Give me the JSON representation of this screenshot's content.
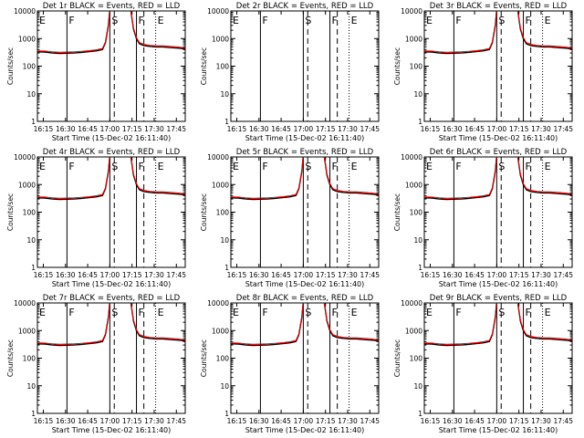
{
  "figure": {
    "colors": {
      "events": "#000000",
      "lld": "#ff0000",
      "frame": "#000000"
    },
    "x_tick_labels": [
      "16:15",
      "16:30",
      "16:45",
      "17:00",
      "17:15",
      "17:30",
      "17:45"
    ],
    "y_tick_labels": [
      "1",
      "10",
      "100",
      "1000",
      "10000"
    ],
    "ylabel": "Counts/sec",
    "xlabel": "Start Time (15-Dec-02 16:11:40)"
  },
  "chart_data": [
    {
      "type": "line",
      "title": "Det 1r  BLACK = Events, RED = LLD",
      "markers": {
        "E": "E",
        "F": "F",
        "S": "S",
        "F2": "F",
        "E2": "E"
      },
      "has_data": true
    },
    {
      "type": "line",
      "title": "Det 2r  BLACK = Events, RED = LLD",
      "markers": {
        "E": "E",
        "F": "F",
        "S": "S",
        "F2": "F",
        "E2": "E"
      },
      "has_data": false
    },
    {
      "type": "line",
      "title": "Det 3r  BLACK = Events, RED = LLD",
      "markers": {
        "E": "E",
        "F": "F",
        "S": "S",
        "F2": "F",
        "E2": "E"
      },
      "has_data": true
    },
    {
      "type": "line",
      "title": "Det 4r  BLACK = Events, RED = LLD",
      "markers": {
        "E": "E",
        "F": "F",
        "S": "S",
        "F2": "F",
        "E2": "E"
      },
      "has_data": true
    },
    {
      "type": "line",
      "title": "Det 5r  BLACK = Events, RED = LLD",
      "markers": {
        "E": "E",
        "F": "F",
        "S": "S",
        "F2": "F",
        "E2": "E"
      },
      "has_data": true
    },
    {
      "type": "line",
      "title": "Det 6r  BLACK = Events, RED = LLD",
      "markers": {
        "E": "E",
        "F": "F",
        "S": "S",
        "F2": "F",
        "E2": "E"
      },
      "has_data": true
    },
    {
      "type": "line",
      "title": "Det 7r  BLACK = Events, RED = LLD",
      "markers": {
        "E": "E",
        "F": "F",
        "S": "S",
        "F2": "F",
        "E2": "E"
      },
      "has_data": true
    },
    {
      "type": "line",
      "title": "Det 8r  BLACK = Events, RED = LLD",
      "markers": {
        "E": "E",
        "F": "F",
        "S": "S",
        "F2": "F",
        "E2": "E"
      },
      "has_data": true
    },
    {
      "type": "line",
      "title": "Det 9r  BLACK = Events, RED = LLD",
      "markers": {
        "E": "E",
        "F": "F",
        "S": "S",
        "F2": "F",
        "E2": "E"
      },
      "has_data": true
    }
  ],
  "series_template": {
    "xlim_minutes_after_1611": [
      0,
      100
    ],
    "ylim": [
      1,
      10000
    ],
    "yscale": "log",
    "markers_minutes_after_1611": {
      "E": 0,
      "F": 20,
      "S": 49,
      "F2": 67,
      "E2": 80
    },
    "events": [
      [
        0,
        330
      ],
      [
        5,
        325
      ],
      [
        10,
        300
      ],
      [
        15,
        290
      ],
      [
        20,
        295
      ],
      [
        25,
        300
      ],
      [
        30,
        315
      ],
      [
        35,
        335
      ],
      [
        40,
        360
      ],
      [
        44,
        400
      ],
      [
        46,
        700
      ],
      [
        48,
        3000
      ],
      [
        49,
        12000
      ],
      [
        63,
        12000
      ],
      [
        65,
        2200
      ],
      [
        67,
        1000
      ],
      [
        69,
        650
      ],
      [
        72,
        560
      ],
      [
        76,
        520
      ],
      [
        80,
        500
      ],
      [
        85,
        500
      ],
      [
        90,
        470
      ],
      [
        95,
        450
      ],
      [
        100,
        420
      ]
    ],
    "lld": [
      [
        0,
        360
      ],
      [
        5,
        355
      ],
      [
        10,
        330
      ],
      [
        15,
        320
      ],
      [
        20,
        325
      ],
      [
        25,
        330
      ],
      [
        30,
        345
      ],
      [
        35,
        365
      ],
      [
        40,
        395
      ],
      [
        44,
        440
      ],
      [
        46,
        760
      ],
      [
        48,
        3300
      ],
      [
        49,
        12000
      ],
      [
        63,
        12000
      ],
      [
        65,
        2400
      ],
      [
        67,
        1100
      ],
      [
        69,
        720
      ],
      [
        72,
        620
      ],
      [
        76,
        570
      ],
      [
        80,
        550
      ],
      [
        85,
        550
      ],
      [
        90,
        520
      ],
      [
        95,
        500
      ],
      [
        100,
        460
      ]
    ]
  }
}
